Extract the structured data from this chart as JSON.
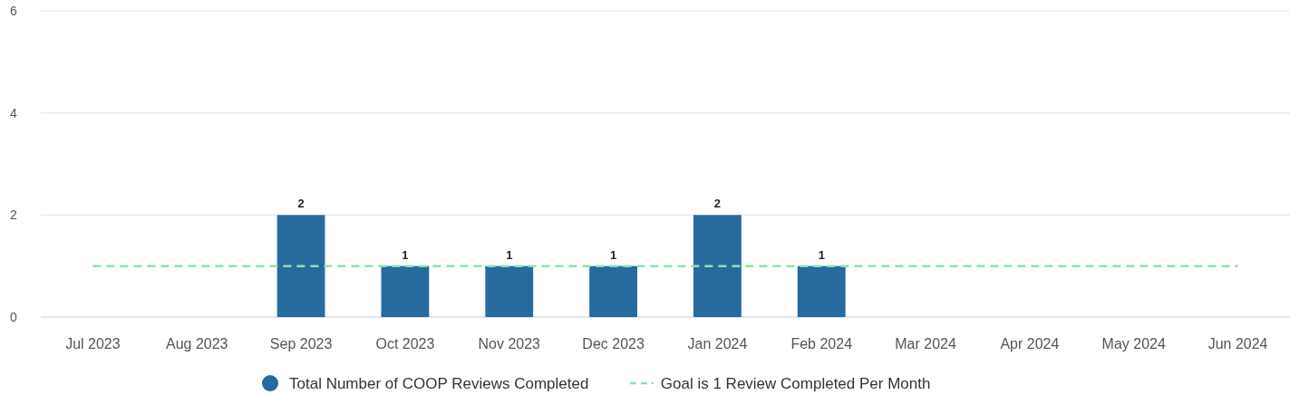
{
  "chart_data": {
    "type": "bar",
    "categories": [
      "Jul 2023",
      "Aug 2023",
      "Sep 2023",
      "Oct 2023",
      "Nov 2023",
      "Dec 2023",
      "Jan 2024",
      "Feb 2024",
      "Mar 2024",
      "Apr 2024",
      "May 2024",
      "Jun 2024"
    ],
    "series": [
      {
        "name": "Total Number of COOP Reviews Completed",
        "color": "#276a9e",
        "values": [
          null,
          null,
          2,
          1,
          1,
          1,
          2,
          1,
          null,
          null,
          null,
          null
        ],
        "value_labels": [
          null,
          null,
          "2",
          "1",
          "1",
          "1",
          "2",
          "1",
          null,
          null,
          null,
          null
        ]
      },
      {
        "name": "Goal is 1 Review Completed Per Month",
        "type": "line",
        "color": "#8fe3a6",
        "line_style": "dashed",
        "marker": "none",
        "values": [
          1,
          1,
          1,
          1,
          1,
          1,
          1,
          1,
          1,
          1,
          1,
          1
        ]
      }
    ],
    "ylim": [
      0,
      6
    ],
    "yticks": [
      0,
      2,
      4,
      6
    ],
    "grid": "y",
    "legend": "bottom"
  }
}
